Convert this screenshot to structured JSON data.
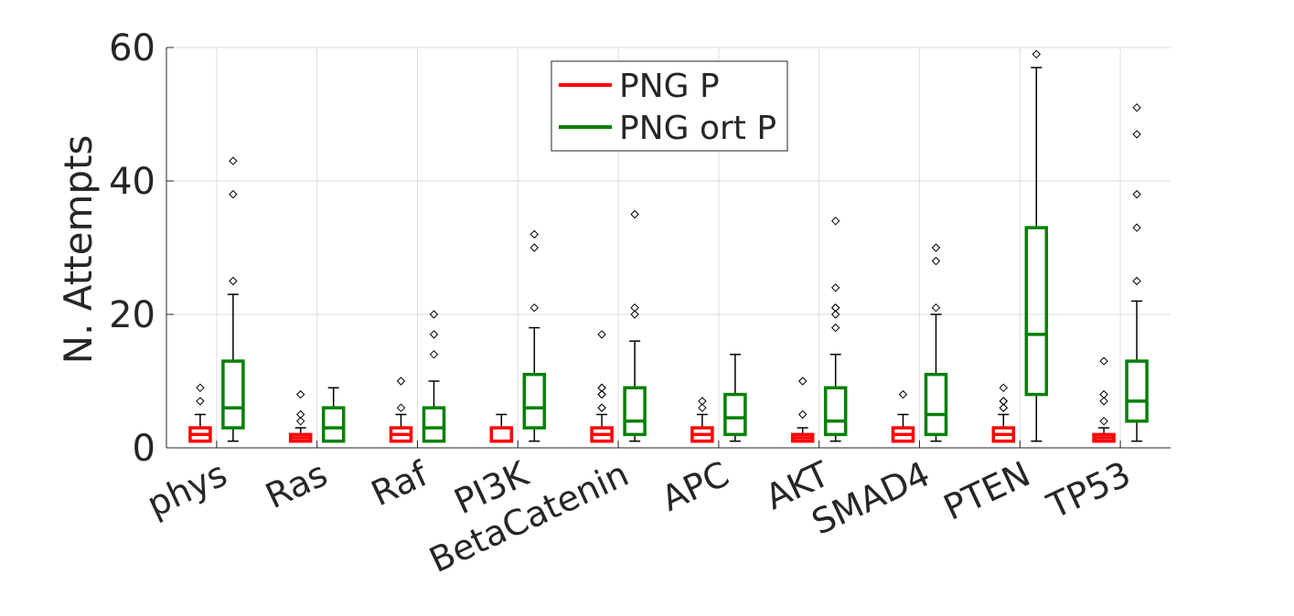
{
  "chart_data": {
    "type": "box",
    "categories": [
      "phys",
      "Ras",
      "Raf",
      "PI3K",
      "BetaCatenin",
      "APC",
      "AKT",
      "SMAD4",
      "PTEN",
      "TP53"
    ],
    "ylabel": "N. Attempts",
    "xlabel": "",
    "title": "",
    "ylim": [
      0,
      60
    ],
    "yticks": [
      0,
      20,
      40,
      60
    ],
    "grid": true,
    "legend_position": "top-center",
    "series": [
      {
        "name": "PNG  P",
        "color": "#ff0000",
        "boxes": [
          {
            "q1": 1,
            "median": 2,
            "q3": 3,
            "whisker_low": 1,
            "whisker_high": 5,
            "outliers": [
              7,
              9
            ]
          },
          {
            "q1": 1,
            "median": 1.5,
            "q3": 2,
            "whisker_low": 1,
            "whisker_high": 3,
            "outliers": [
              4,
              5,
              8
            ]
          },
          {
            "q1": 1,
            "median": 2,
            "q3": 3,
            "whisker_low": 1,
            "whisker_high": 5,
            "outliers": [
              6,
              10
            ]
          },
          {
            "q1": 1,
            "median": 1,
            "q3": 3,
            "whisker_low": 1,
            "whisker_high": 5,
            "outliers": []
          },
          {
            "q1": 1,
            "median": 2,
            "q3": 3,
            "whisker_low": 1,
            "whisker_high": 5,
            "outliers": [
              6,
              6,
              8,
              8,
              9,
              9,
              17
            ]
          },
          {
            "q1": 1,
            "median": 2,
            "q3": 3,
            "whisker_low": 1,
            "whisker_high": 5,
            "outliers": [
              6,
              7
            ]
          },
          {
            "q1": 1,
            "median": 1.5,
            "q3": 2,
            "whisker_low": 1,
            "whisker_high": 3,
            "outliers": [
              5,
              10
            ]
          },
          {
            "q1": 1,
            "median": 2,
            "q3": 3,
            "whisker_low": 1,
            "whisker_high": 5,
            "outliers": [
              8
            ]
          },
          {
            "q1": 1,
            "median": 2,
            "q3": 3,
            "whisker_low": 1,
            "whisker_high": 5,
            "outliers": [
              6,
              6,
              7,
              7,
              9
            ]
          },
          {
            "q1": 1,
            "median": 1.5,
            "q3": 2,
            "whisker_low": 1,
            "whisker_high": 3,
            "outliers": [
              4,
              7,
              8,
              13
            ]
          }
        ]
      },
      {
        "name": "PNG ort P",
        "color": "#008000",
        "boxes": [
          {
            "q1": 3,
            "median": 6,
            "q3": 13,
            "whisker_low": 1,
            "whisker_high": 23,
            "outliers": [
              25,
              38,
              43
            ]
          },
          {
            "q1": 1,
            "median": 3,
            "q3": 6,
            "whisker_low": 1,
            "whisker_high": 9,
            "outliers": []
          },
          {
            "q1": 1,
            "median": 3,
            "q3": 6,
            "whisker_low": 1,
            "whisker_high": 10,
            "outliers": [
              14,
              17,
              20
            ]
          },
          {
            "q1": 3,
            "median": 6,
            "q3": 11,
            "whisker_low": 1,
            "whisker_high": 18,
            "outliers": [
              21,
              30,
              32
            ]
          },
          {
            "q1": 2,
            "median": 4,
            "q3": 9,
            "whisker_low": 1,
            "whisker_high": 16,
            "outliers": [
              20,
              21,
              35
            ]
          },
          {
            "q1": 2,
            "median": 4.5,
            "q3": 8,
            "whisker_low": 1,
            "whisker_high": 14,
            "outliers": []
          },
          {
            "q1": 2,
            "median": 4,
            "q3": 9,
            "whisker_low": 1,
            "whisker_high": 14,
            "outliers": [
              18,
              20,
              21,
              21,
              24,
              34
            ]
          },
          {
            "q1": 2,
            "median": 5,
            "q3": 11,
            "whisker_low": 1,
            "whisker_high": 20,
            "outliers": [
              21,
              28,
              30
            ]
          },
          {
            "q1": 8,
            "median": 17,
            "q3": 33,
            "whisker_low": 1,
            "whisker_high": 57,
            "outliers": [
              59
            ]
          },
          {
            "q1": 4,
            "median": 7,
            "q3": 13,
            "whisker_low": 1,
            "whisker_high": 22,
            "outliers": [
              25,
              33,
              38,
              47,
              51
            ]
          }
        ]
      }
    ]
  }
}
